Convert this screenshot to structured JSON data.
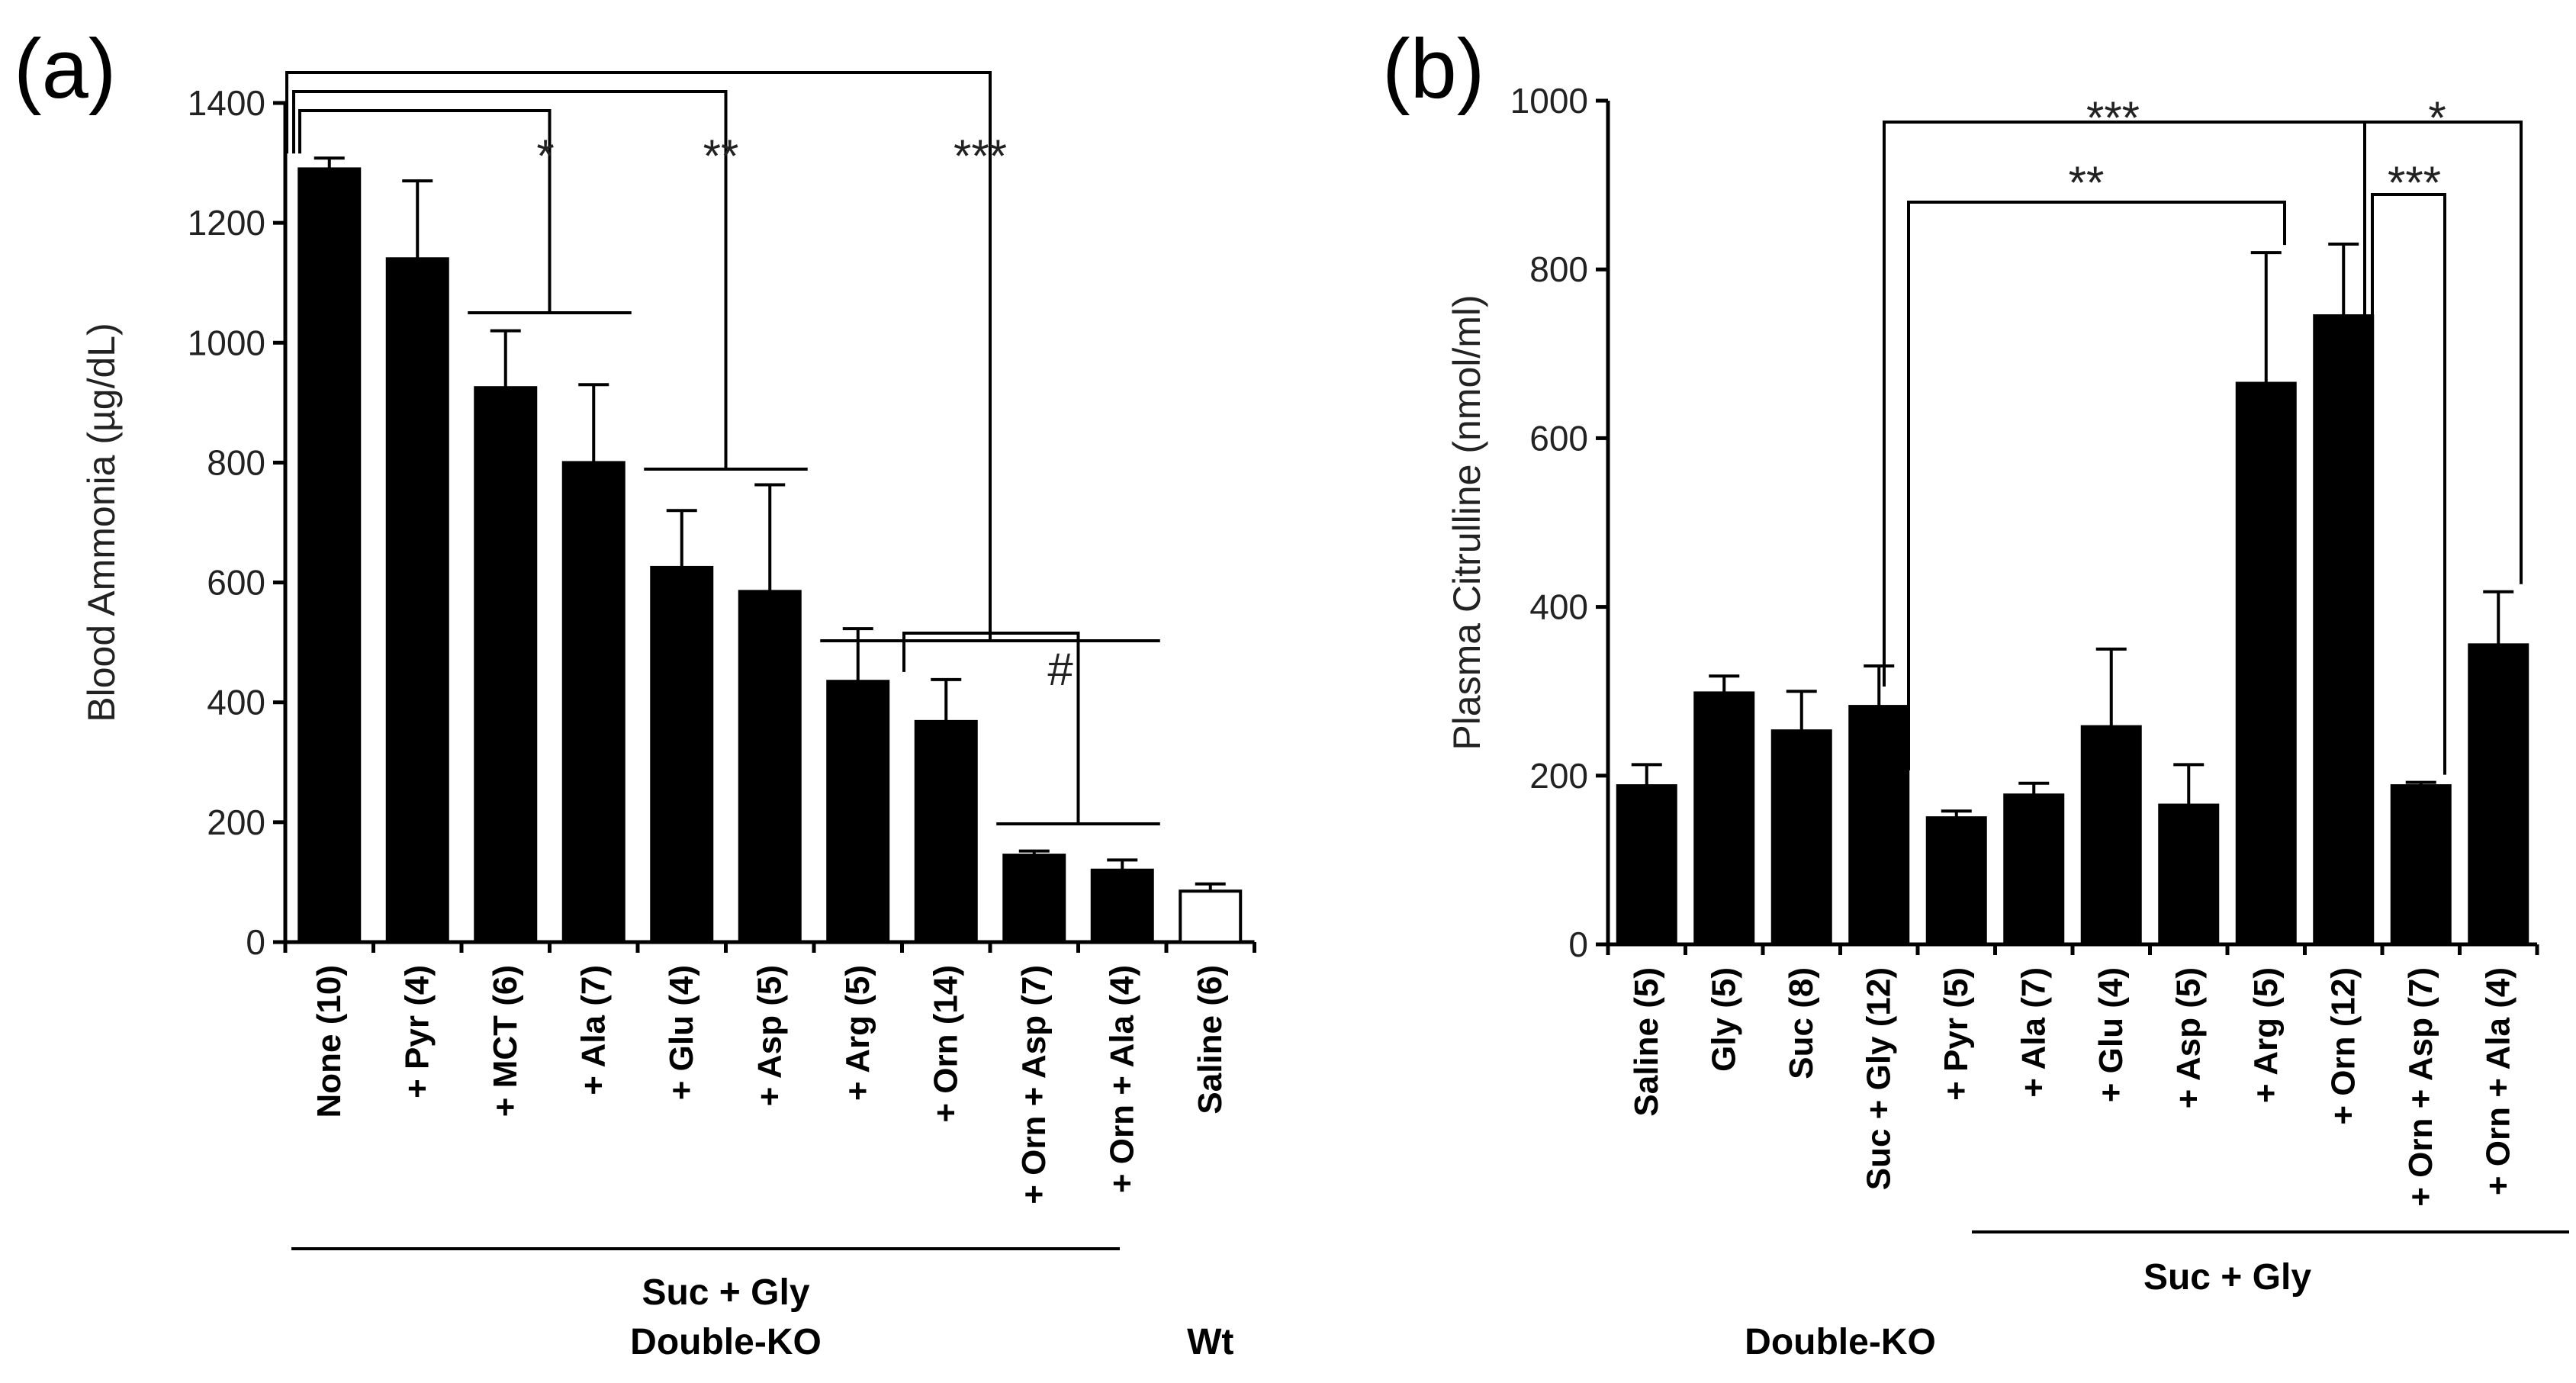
{
  "chart_data": [
    {
      "type": "bar",
      "panel_label": "(a)",
      "ylabel": "Blood Ammonia (µg/dL)",
      "ylim": [
        0,
        1400
      ],
      "yticks": [
        0,
        200,
        400,
        600,
        800,
        1000,
        1200,
        1400
      ],
      "categories": [
        "None (10)",
        "+ Pyr (4)",
        "+ MCT (6)",
        "+ Ala (7)",
        "+ Glu (4)",
        "+ Asp (5)",
        "+ Arg (5)",
        "+ Orn (14)",
        "+ Orn + Asp (7)",
        "+ Orn + Ala (4)",
        "Saline (6)"
      ],
      "values": [
        1290,
        1140,
        925,
        800,
        625,
        585,
        435,
        368,
        145,
        120,
        85
      ],
      "errors": [
        18,
        130,
        95,
        130,
        95,
        178,
        88,
        70,
        7,
        17,
        12
      ],
      "bar_colors": [
        "#000000",
        "#000000",
        "#000000",
        "#000000",
        "#000000",
        "#000000",
        "#000000",
        "#000000",
        "#000000",
        "#000000",
        "#ffffff"
      ],
      "significance": [
        {
          "label": "*",
          "from": [
            0
          ],
          "to": [
            2,
            3
          ]
        },
        {
          "label": "**",
          "from": [
            0
          ],
          "to": [
            4,
            5
          ]
        },
        {
          "label": "***",
          "from": [
            0
          ],
          "to": [
            6,
            7,
            8,
            9
          ]
        },
        {
          "label": "#",
          "from": [
            7
          ],
          "to": [
            8,
            9
          ]
        }
      ],
      "groups": [
        {
          "label": "Suc + Gly",
          "span": [
            0,
            9
          ],
          "underline": true
        },
        {
          "label": "Double-KO",
          "span": [
            0,
            9
          ],
          "underline": false
        },
        {
          "label": "Wt",
          "span": [
            10,
            10
          ],
          "underline": false
        }
      ]
    },
    {
      "type": "bar",
      "panel_label": "(b)",
      "ylabel": "Plasma Citrulline (nmol/ml)",
      "ylim": [
        0,
        1000
      ],
      "yticks": [
        0,
        200,
        400,
        600,
        800,
        1000
      ],
      "categories": [
        "Saline (5)",
        "Gly (5)",
        "Suc (8)",
        "Suc + Gly (12)",
        "+ Pyr (5)",
        "+ Ala (7)",
        "+ Glu (4)",
        "+ Asp (5)",
        "+ Arg (5)",
        "+ Orn (12)",
        "+ Orn + Asp (7)",
        "+ Orn + Ala (4)"
      ],
      "values": [
        188,
        298,
        253,
        282,
        150,
        177,
        258,
        165,
        665,
        745,
        188,
        355
      ],
      "errors": [
        25,
        20,
        47,
        48,
        8,
        14,
        92,
        48,
        155,
        85,
        4,
        63
      ],
      "bar_colors": [
        "#000000",
        "#000000",
        "#000000",
        "#000000",
        "#000000",
        "#000000",
        "#000000",
        "#000000",
        "#000000",
        "#000000",
        "#000000",
        "#000000"
      ],
      "significance": [
        {
          "label": "***",
          "from": [
            3
          ],
          "to": [
            9
          ]
        },
        {
          "label": "**",
          "from": [
            3
          ],
          "to": [
            8
          ]
        },
        {
          "label": "*",
          "from": [
            9
          ],
          "to": [
            11
          ]
        },
        {
          "label": "***",
          "from": [
            9
          ],
          "to": [
            10
          ]
        }
      ],
      "groups": [
        {
          "label": "Suc + Gly",
          "span": [
            4,
            11
          ],
          "underline": true
        },
        {
          "label": "Double-KO",
          "span": [
            0,
            11
          ],
          "underline": false
        }
      ]
    }
  ]
}
